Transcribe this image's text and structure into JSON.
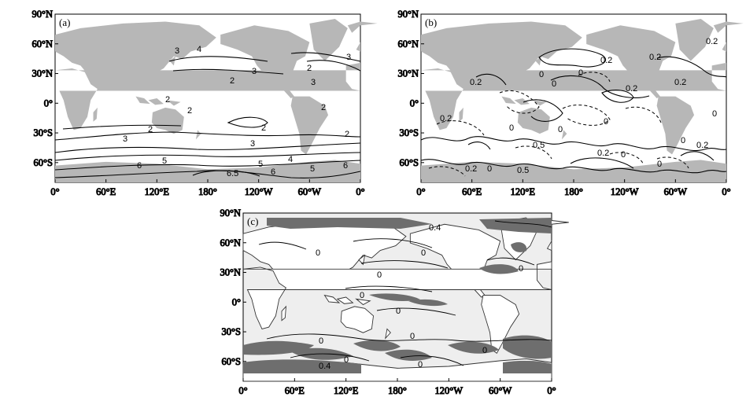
{
  "figure": {
    "lat_ticks": [
      "90°N",
      "60°N",
      "30°N",
      "0°",
      "30°S",
      "60°S"
    ],
    "lon_ticks": [
      "0°",
      "60°E",
      "120°E",
      "180°",
      "120°W",
      "60°W",
      "0°"
    ],
    "panels": [
      {
        "id": "a",
        "label": "(a)",
        "contour_labels": [
          "4",
          "3",
          "2",
          "3",
          "2",
          "3",
          "2",
          "2",
          "2",
          "2",
          "2",
          "3",
          "3",
          "5",
          "4",
          "6",
          "6",
          "5",
          "6.5",
          "5",
          "6",
          "2",
          "3"
        ]
      },
      {
        "id": "b",
        "label": "(b)",
        "contour_labels": [
          "0.2",
          "0",
          "0.2",
          "0",
          "0.2",
          "0.2",
          "0",
          "0.2",
          "0",
          "0",
          "0.5",
          "0",
          "0.2",
          "0",
          "0",
          "0.2",
          "0.2",
          "0",
          "0",
          "0.5",
          "0.2",
          "0.2",
          "0"
        ]
      },
      {
        "id": "c",
        "label": "(c)",
        "contour_labels": [
          "0.4",
          "0",
          "0",
          "0",
          "0",
          "0",
          "0",
          "0",
          "0",
          "0.4",
          "0",
          "0",
          "0"
        ]
      }
    ]
  },
  "colors": {
    "land": "#b7b7b7",
    "contour": "#000000",
    "shade_light": "#eeeeee",
    "shade_dark": "#6e6e6e"
  }
}
